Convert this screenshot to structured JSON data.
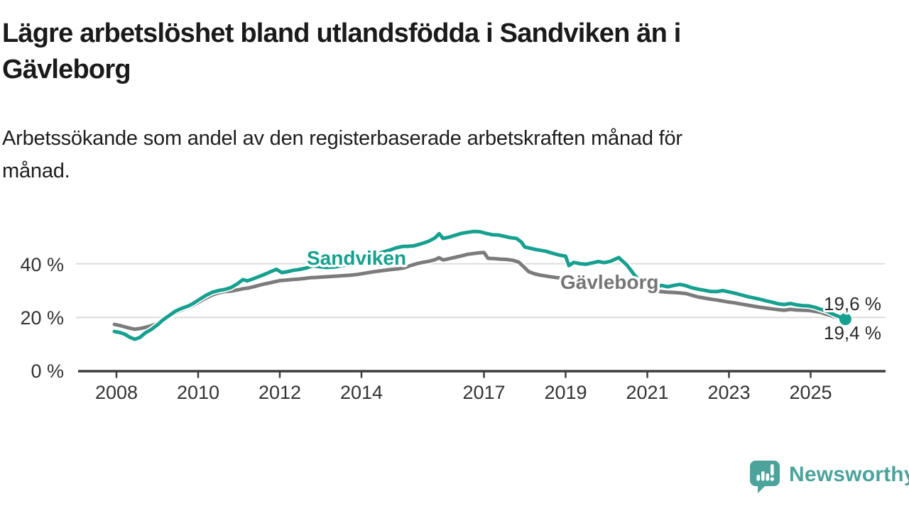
{
  "header": {
    "title_lines": [
      "Lägre arbetslöshet bland utlandsfödda i Sandviken än i",
      "Gävleborg"
    ],
    "subtitle_lines": [
      "Arbetssökande som andel av den registerbaserade arbetskraften månad för",
      "månad."
    ]
  },
  "chart_data": {
    "type": "line",
    "title": "Lägre arbetslöshet bland utlandsfödda i Sandviken än i Gävleborg",
    "subtitle": "Arbetssökande som andel av den registerbaserade arbetskraften månad för månad.",
    "unit": "%",
    "grid": "horizontal-only",
    "x_axis": {
      "ticks": [
        2008,
        2010,
        2012,
        2014,
        2017,
        2019,
        2021,
        2023,
        2025
      ],
      "range": [
        2007.9,
        2026.8
      ]
    },
    "y_axis": {
      "ticks": [
        {
          "value": 0,
          "label": "0 %"
        },
        {
          "value": 20,
          "label": "20 %"
        },
        {
          "value": 40,
          "label": "40 %"
        }
      ],
      "range": [
        0,
        55
      ]
    },
    "end_labels": {
      "top": "19,6 %",
      "bottom": "19,4 %"
    },
    "series": [
      {
        "name": "Sandviken",
        "color": "#16a08f",
        "end_value": 19.4,
        "end_label": "19,4 %",
        "points": [
          [
            2007.95,
            14.8
          ],
          [
            2008.08,
            14.4
          ],
          [
            2008.2,
            13.8
          ],
          [
            2008.33,
            12.6
          ],
          [
            2008.45,
            11.9
          ],
          [
            2008.58,
            12.6
          ],
          [
            2008.7,
            14.2
          ],
          [
            2008.85,
            15.5
          ],
          [
            2009.0,
            17.2
          ],
          [
            2009.15,
            19.2
          ],
          [
            2009.3,
            20.8
          ],
          [
            2009.45,
            22.4
          ],
          [
            2009.6,
            23.4
          ],
          [
            2009.75,
            24.2
          ],
          [
            2009.9,
            25.4
          ],
          [
            2010.05,
            26.9
          ],
          [
            2010.2,
            28.3
          ],
          [
            2010.35,
            29.4
          ],
          [
            2010.5,
            30.0
          ],
          [
            2010.65,
            30.4
          ],
          [
            2010.8,
            31.1
          ],
          [
            2010.95,
            32.4
          ],
          [
            2011.1,
            34.1
          ],
          [
            2011.2,
            33.6
          ],
          [
            2011.35,
            34.4
          ],
          [
            2011.5,
            35.3
          ],
          [
            2011.65,
            36.2
          ],
          [
            2011.8,
            37.2
          ],
          [
            2011.92,
            37.9
          ],
          [
            2012.05,
            36.7
          ],
          [
            2012.2,
            37.1
          ],
          [
            2012.35,
            37.6
          ],
          [
            2012.5,
            37.9
          ],
          [
            2012.65,
            38.4
          ],
          [
            2012.8,
            39.2
          ],
          [
            2012.95,
            38.9
          ],
          [
            2013.15,
            38.6
          ],
          [
            2013.35,
            38.8
          ],
          [
            2013.55,
            39.3
          ],
          [
            2013.75,
            40.0
          ],
          [
            2013.9,
            40.6
          ],
          [
            2014.1,
            41.9
          ],
          [
            2014.3,
            43.2
          ],
          [
            2014.5,
            44.2
          ],
          [
            2014.7,
            45.1
          ],
          [
            2014.85,
            45.9
          ],
          [
            2015.0,
            46.4
          ],
          [
            2015.15,
            46.5
          ],
          [
            2015.3,
            46.7
          ],
          [
            2015.5,
            47.6
          ],
          [
            2015.65,
            48.4
          ],
          [
            2015.8,
            49.6
          ],
          [
            2015.9,
            51.2
          ],
          [
            2016.0,
            49.4
          ],
          [
            2016.15,
            49.9
          ],
          [
            2016.3,
            50.6
          ],
          [
            2016.45,
            51.3
          ],
          [
            2016.6,
            51.7
          ],
          [
            2016.75,
            52.0
          ],
          [
            2016.9,
            51.9
          ],
          [
            2017.05,
            51.3
          ],
          [
            2017.2,
            50.8
          ],
          [
            2017.35,
            50.7
          ],
          [
            2017.5,
            50.2
          ],
          [
            2017.65,
            49.7
          ],
          [
            2017.8,
            49.4
          ],
          [
            2017.92,
            48.0
          ],
          [
            2018.0,
            46.2
          ],
          [
            2018.15,
            45.7
          ],
          [
            2018.3,
            45.2
          ],
          [
            2018.5,
            44.7
          ],
          [
            2018.7,
            43.8
          ],
          [
            2018.85,
            43.2
          ],
          [
            2019.0,
            42.8
          ],
          [
            2019.08,
            39.3
          ],
          [
            2019.2,
            40.5
          ],
          [
            2019.35,
            40.0
          ],
          [
            2019.5,
            39.8
          ],
          [
            2019.65,
            40.3
          ],
          [
            2019.8,
            40.8
          ],
          [
            2019.95,
            40.4
          ],
          [
            2020.1,
            40.9
          ],
          [
            2020.3,
            42.3
          ],
          [
            2020.5,
            39.5
          ],
          [
            2020.7,
            35.5
          ],
          [
            2020.9,
            32.5
          ],
          [
            2021.05,
            31.2
          ],
          [
            2021.2,
            31.3
          ],
          [
            2021.35,
            31.9
          ],
          [
            2021.5,
            31.4
          ],
          [
            2021.65,
            31.9
          ],
          [
            2021.8,
            32.3
          ],
          [
            2021.95,
            31.8
          ],
          [
            2022.1,
            31.0
          ],
          [
            2022.25,
            30.5
          ],
          [
            2022.4,
            30.1
          ],
          [
            2022.55,
            29.7
          ],
          [
            2022.7,
            29.6
          ],
          [
            2022.85,
            30.0
          ],
          [
            2023.0,
            29.5
          ],
          [
            2023.15,
            29.0
          ],
          [
            2023.3,
            28.4
          ],
          [
            2023.45,
            27.8
          ],
          [
            2023.6,
            27.3
          ],
          [
            2023.75,
            26.8
          ],
          [
            2023.9,
            26.2
          ],
          [
            2024.05,
            25.7
          ],
          [
            2024.2,
            25.1
          ],
          [
            2024.35,
            24.8
          ],
          [
            2024.5,
            25.2
          ],
          [
            2024.65,
            24.7
          ],
          [
            2024.8,
            24.4
          ],
          [
            2024.95,
            24.3
          ],
          [
            2025.1,
            23.8
          ],
          [
            2025.25,
            23.0
          ],
          [
            2025.4,
            22.3
          ],
          [
            2025.55,
            21.2
          ],
          [
            2025.7,
            20.3
          ],
          [
            2025.85,
            19.4
          ]
        ]
      },
      {
        "name": "Gävleborg",
        "color": "#7b7b7b",
        "label_color": "#757575",
        "end_value": 19.6,
        "end_label": "19,6 %",
        "points": [
          [
            2007.95,
            17.4
          ],
          [
            2008.08,
            17.0
          ],
          [
            2008.2,
            16.5
          ],
          [
            2008.33,
            16.0
          ],
          [
            2008.45,
            15.6
          ],
          [
            2008.58,
            15.9
          ],
          [
            2008.7,
            16.3
          ],
          [
            2008.85,
            16.9
          ],
          [
            2009.0,
            17.7
          ],
          [
            2009.15,
            18.9
          ],
          [
            2009.3,
            20.4
          ],
          [
            2009.45,
            21.8
          ],
          [
            2009.6,
            22.8
          ],
          [
            2009.75,
            23.7
          ],
          [
            2009.9,
            24.7
          ],
          [
            2010.05,
            26.0
          ],
          [
            2010.2,
            27.3
          ],
          [
            2010.35,
            28.4
          ],
          [
            2010.5,
            29.2
          ],
          [
            2010.65,
            29.6
          ],
          [
            2010.8,
            29.8
          ],
          [
            2010.95,
            30.2
          ],
          [
            2011.1,
            30.7
          ],
          [
            2011.25,
            31.0
          ],
          [
            2011.4,
            31.6
          ],
          [
            2011.55,
            32.2
          ],
          [
            2011.7,
            32.7
          ],
          [
            2011.85,
            33.2
          ],
          [
            2012.0,
            33.7
          ],
          [
            2012.15,
            33.9
          ],
          [
            2012.3,
            34.1
          ],
          [
            2012.45,
            34.3
          ],
          [
            2012.6,
            34.5
          ],
          [
            2012.75,
            34.8
          ],
          [
            2012.9,
            34.9
          ],
          [
            2013.1,
            35.1
          ],
          [
            2013.3,
            35.3
          ],
          [
            2013.5,
            35.5
          ],
          [
            2013.7,
            35.7
          ],
          [
            2013.9,
            36.0
          ],
          [
            2014.1,
            36.5
          ],
          [
            2014.3,
            37.0
          ],
          [
            2014.5,
            37.4
          ],
          [
            2014.7,
            37.8
          ],
          [
            2014.9,
            38.1
          ],
          [
            2015.05,
            38.5
          ],
          [
            2015.2,
            39.3
          ],
          [
            2015.35,
            40.0
          ],
          [
            2015.5,
            40.5
          ],
          [
            2015.65,
            40.9
          ],
          [
            2015.8,
            41.5
          ],
          [
            2015.9,
            42.2
          ],
          [
            2016.0,
            41.4
          ],
          [
            2016.15,
            41.9
          ],
          [
            2016.3,
            42.4
          ],
          [
            2016.45,
            42.9
          ],
          [
            2016.6,
            43.5
          ],
          [
            2016.75,
            43.8
          ],
          [
            2016.9,
            44.1
          ],
          [
            2017.0,
            44.2
          ],
          [
            2017.1,
            42.0
          ],
          [
            2017.25,
            41.9
          ],
          [
            2017.4,
            41.7
          ],
          [
            2017.55,
            41.6
          ],
          [
            2017.7,
            41.3
          ],
          [
            2017.85,
            40.6
          ],
          [
            2017.95,
            39.2
          ],
          [
            2018.1,
            37.0
          ],
          [
            2018.25,
            36.2
          ],
          [
            2018.4,
            35.7
          ],
          [
            2018.6,
            35.2
          ],
          [
            2018.8,
            34.8
          ],
          [
            2018.95,
            34.6
          ],
          [
            2019.15,
            34.2
          ],
          [
            2019.35,
            33.9
          ],
          [
            2019.55,
            33.6
          ],
          [
            2019.75,
            33.4
          ],
          [
            2019.95,
            33.2
          ],
          [
            2020.15,
            33.7
          ],
          [
            2020.3,
            34.3
          ],
          [
            2020.5,
            33.5
          ],
          [
            2020.7,
            32.5
          ],
          [
            2020.9,
            31.4
          ],
          [
            2021.05,
            30.4
          ],
          [
            2021.2,
            29.8
          ],
          [
            2021.35,
            29.6
          ],
          [
            2021.5,
            29.4
          ],
          [
            2021.65,
            29.3
          ],
          [
            2021.8,
            29.1
          ],
          [
            2021.95,
            28.9
          ],
          [
            2022.1,
            28.2
          ],
          [
            2022.25,
            27.6
          ],
          [
            2022.4,
            27.2
          ],
          [
            2022.55,
            26.8
          ],
          [
            2022.7,
            26.5
          ],
          [
            2022.85,
            26.1
          ],
          [
            2023.0,
            25.7
          ],
          [
            2023.15,
            25.4
          ],
          [
            2023.3,
            25.0
          ],
          [
            2023.45,
            24.6
          ],
          [
            2023.6,
            24.2
          ],
          [
            2023.75,
            23.8
          ],
          [
            2023.9,
            23.5
          ],
          [
            2024.05,
            23.2
          ],
          [
            2024.2,
            22.9
          ],
          [
            2024.35,
            22.7
          ],
          [
            2024.5,
            23.0
          ],
          [
            2024.65,
            22.8
          ],
          [
            2024.8,
            22.7
          ],
          [
            2024.95,
            22.6
          ],
          [
            2025.1,
            22.3
          ],
          [
            2025.25,
            21.9
          ],
          [
            2025.4,
            21.1
          ],
          [
            2025.55,
            20.4
          ],
          [
            2025.7,
            19.9
          ],
          [
            2025.85,
            19.6
          ]
        ]
      }
    ]
  },
  "colors": {
    "accent_teal": "#16a08f",
    "series_gray": "#7b7b7b",
    "logo_teal": "#4ba39c",
    "gridline": "#d9d9d9",
    "axis": "#3d3d3d"
  },
  "branding": {
    "logo_text": "Newsworthy"
  }
}
